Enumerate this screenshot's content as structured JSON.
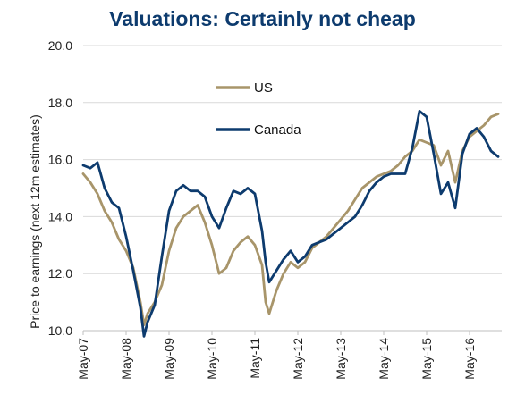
{
  "chart_data": {
    "type": "line",
    "title": "Valuations: Certainly not cheap",
    "xlabel": "",
    "ylabel": "Price to earnings (next 12m estimates)",
    "ylim": [
      10.0,
      20.0
    ],
    "y_ticks": [
      "10.0",
      "12.0",
      "14.0",
      "16.0",
      "18.0",
      "20.0"
    ],
    "x_ticks": [
      "May-07",
      "May-08",
      "May-09",
      "May-10",
      "May-11",
      "May-12",
      "May-13",
      "May-14",
      "May-15",
      "May-16"
    ],
    "x_tick_values": [
      "2007-05",
      "2008-05",
      "2009-05",
      "2010-05",
      "2011-05",
      "2012-05",
      "2013-05",
      "2014-05",
      "2015-05",
      "2016-05"
    ],
    "xlim": [
      "2007-05",
      "2017-02"
    ],
    "grid": "horizontal",
    "legend_position": "top-center",
    "series": [
      {
        "name": "US",
        "color": "#a8956a",
        "x": [
          "2007-05",
          "2007-07",
          "2007-09",
          "2007-11",
          "2008-01",
          "2008-03",
          "2008-05",
          "2008-07",
          "2008-09",
          "2008-10",
          "2008-11",
          "2009-01",
          "2009-03",
          "2009-05",
          "2009-07",
          "2009-09",
          "2009-11",
          "2010-01",
          "2010-03",
          "2010-05",
          "2010-07",
          "2010-09",
          "2010-11",
          "2011-01",
          "2011-03",
          "2011-05",
          "2011-07",
          "2011-08",
          "2011-09",
          "2011-11",
          "2012-01",
          "2012-03",
          "2012-05",
          "2012-07",
          "2012-09",
          "2012-11",
          "2013-01",
          "2013-03",
          "2013-05",
          "2013-07",
          "2013-09",
          "2013-11",
          "2014-01",
          "2014-03",
          "2014-05",
          "2014-07",
          "2014-09",
          "2014-11",
          "2015-01",
          "2015-03",
          "2015-05",
          "2015-07",
          "2015-09",
          "2015-11",
          "2016-01",
          "2016-03",
          "2016-05",
          "2016-07",
          "2016-09",
          "2016-11",
          "2017-01"
        ],
        "values": [
          15.5,
          15.2,
          14.8,
          14.2,
          13.8,
          13.2,
          12.8,
          12.2,
          11.0,
          10.2,
          10.6,
          11.0,
          11.6,
          12.8,
          13.6,
          14.0,
          14.2,
          14.4,
          13.8,
          13.0,
          12.0,
          12.2,
          12.8,
          13.1,
          13.3,
          13.0,
          12.3,
          11.0,
          10.6,
          11.4,
          12.0,
          12.4,
          12.2,
          12.4,
          12.9,
          13.1,
          13.3,
          13.6,
          13.9,
          14.2,
          14.6,
          15.0,
          15.2,
          15.4,
          15.5,
          15.6,
          15.8,
          16.1,
          16.3,
          16.7,
          16.6,
          16.5,
          15.8,
          16.3,
          15.2,
          16.3,
          16.8,
          17.0,
          17.2,
          17.5,
          17.6
        ]
      },
      {
        "name": "Canada",
        "color": "#0d3b6e",
        "x": [
          "2007-05",
          "2007-07",
          "2007-09",
          "2007-11",
          "2008-01",
          "2008-03",
          "2008-05",
          "2008-07",
          "2008-09",
          "2008-10",
          "2008-11",
          "2009-01",
          "2009-03",
          "2009-05",
          "2009-07",
          "2009-09",
          "2009-11",
          "2010-01",
          "2010-03",
          "2010-05",
          "2010-07",
          "2010-09",
          "2010-11",
          "2011-01",
          "2011-03",
          "2011-05",
          "2011-07",
          "2011-08",
          "2011-09",
          "2011-11",
          "2012-01",
          "2012-03",
          "2012-05",
          "2012-07",
          "2012-09",
          "2012-11",
          "2013-01",
          "2013-03",
          "2013-05",
          "2013-07",
          "2013-09",
          "2013-11",
          "2014-01",
          "2014-03",
          "2014-05",
          "2014-07",
          "2014-09",
          "2014-11",
          "2015-01",
          "2015-03",
          "2015-05",
          "2015-07",
          "2015-09",
          "2015-11",
          "2016-01",
          "2016-03",
          "2016-05",
          "2016-07",
          "2016-09",
          "2016-11",
          "2017-01"
        ],
        "values": [
          15.8,
          15.7,
          15.9,
          15.0,
          14.5,
          14.3,
          13.3,
          12.1,
          10.8,
          9.8,
          10.3,
          10.9,
          12.6,
          14.2,
          14.9,
          15.1,
          14.9,
          14.9,
          14.7,
          14.0,
          13.6,
          14.3,
          14.9,
          14.8,
          15.0,
          14.8,
          13.5,
          12.4,
          11.7,
          12.1,
          12.5,
          12.8,
          12.4,
          12.6,
          13.0,
          13.1,
          13.2,
          13.4,
          13.6,
          13.8,
          14.0,
          14.4,
          14.9,
          15.2,
          15.4,
          15.5,
          15.5,
          15.5,
          16.4,
          17.7,
          17.5,
          16.2,
          14.8,
          15.2,
          14.3,
          16.2,
          16.9,
          17.1,
          16.8,
          16.3,
          16.1
        ]
      }
    ]
  }
}
